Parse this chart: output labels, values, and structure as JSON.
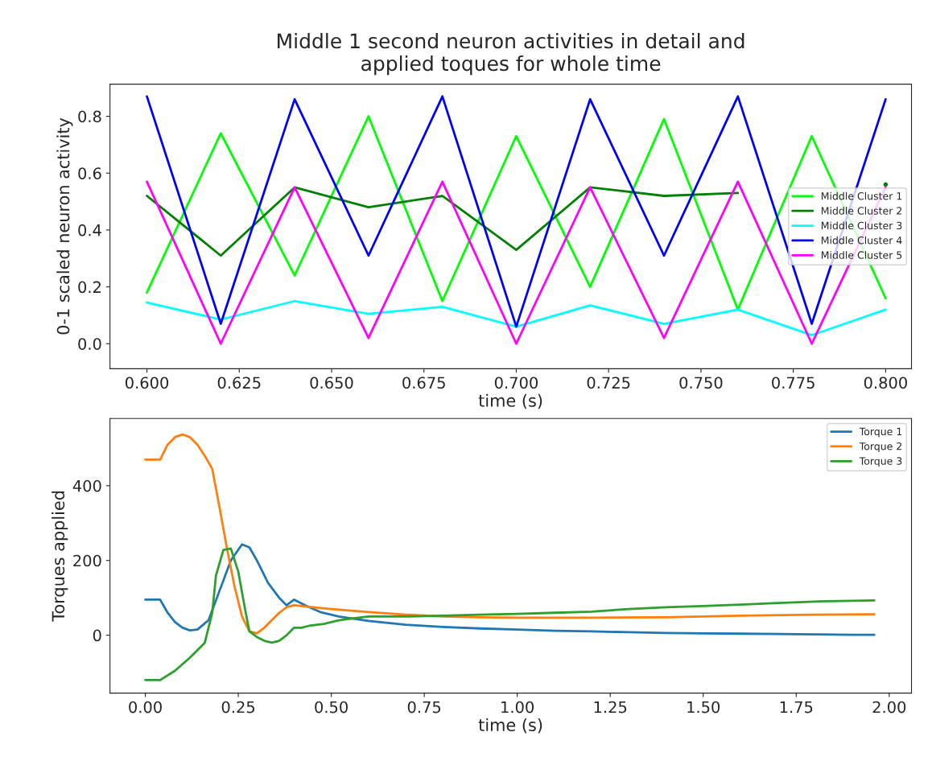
{
  "chart_data": [
    {
      "type": "line",
      "title": "Middle 1 second neuron activities in detail and\napplied toques for whole time",
      "xlabel": "time (s)",
      "ylabel": "0-1 scaled neuron activity",
      "x": [
        0.6,
        0.62,
        0.64,
        0.66,
        0.68,
        0.7,
        0.72,
        0.74,
        0.76,
        0.78,
        0.8
      ],
      "series": [
        {
          "name": "Middle Cluster 1",
          "color": "#00ff00",
          "values": [
            0.18,
            0.74,
            0.24,
            0.8,
            0.15,
            0.73,
            0.2,
            0.79,
            0.12,
            0.73,
            0.16
          ]
        },
        {
          "name": "Middle Cluster 2",
          "color": "#008000",
          "values": [
            0.52,
            0.31,
            0.55,
            0.48,
            0.52,
            0.33,
            0.55,
            0.52,
            0.53,
            null,
            0.56
          ]
        },
        {
          "name": "Middle Cluster 3",
          "color": "#00ffff",
          "values": [
            0.145,
            0.085,
            0.15,
            0.105,
            0.13,
            0.06,
            0.135,
            0.07,
            0.12,
            0.03,
            0.12
          ]
        },
        {
          "name": "Middle Cluster 4",
          "color": "#0000ff",
          "values": [
            0.87,
            0.07,
            0.86,
            0.31,
            0.87,
            0.06,
            0.86,
            0.31,
            0.87,
            0.07,
            0.86
          ]
        },
        {
          "name": "Middle Cluster 5",
          "color": "#ff00ff",
          "values": [
            0.57,
            0.0,
            0.55,
            0.02,
            0.57,
            0.0,
            0.55,
            0.02,
            0.57,
            0.0,
            0.55
          ]
        }
      ],
      "xlim": [
        0.59,
        0.807
      ],
      "ylim": [
        -0.088,
        0.913
      ],
      "xticks": [
        {
          "value": 0.6,
          "label": "0.600"
        },
        {
          "value": 0.625,
          "label": "0.625"
        },
        {
          "value": 0.65,
          "label": "0.650"
        },
        {
          "value": 0.675,
          "label": "0.675"
        },
        {
          "value": 0.7,
          "label": "0.700"
        },
        {
          "value": 0.725,
          "label": "0.725"
        },
        {
          "value": 0.75,
          "label": "0.750"
        },
        {
          "value": 0.775,
          "label": "0.775"
        },
        {
          "value": 0.8,
          "label": "0.800"
        }
      ],
      "yticks": [
        {
          "value": 0,
          "label": "0.0"
        },
        0.2,
        0.4,
        0.6,
        0.8
      ],
      "legend": "right",
      "grid": false
    },
    {
      "type": "line",
      "xlabel": "time (s)",
      "ylabel": "Torques applied",
      "series": [
        {
          "name": "Torque 1",
          "color": "#1f77b4",
          "x": [
            0,
            0.04,
            0.06,
            0.08,
            0.1,
            0.12,
            0.14,
            0.17,
            0.2,
            0.23,
            0.26,
            0.28,
            0.3,
            0.33,
            0.36,
            0.38,
            0.4,
            0.43,
            0.47,
            0.52,
            0.6,
            0.7,
            0.8,
            0.9,
            1.0,
            1.1,
            1.2,
            1.3,
            1.4,
            1.5,
            1.6,
            1.7,
            1.8,
            1.9,
            1.96
          ],
          "values": [
            95,
            95,
            60,
            35,
            20,
            13,
            15,
            40,
            120,
            200,
            243,
            235,
            200,
            140,
            100,
            80,
            95,
            80,
            62,
            50,
            38,
            28,
            22,
            18,
            15,
            12,
            10,
            8,
            6,
            5,
            4,
            3,
            2,
            1,
            1
          ]
        },
        {
          "name": "Torque 2",
          "color": "#ff7f0e",
          "x": [
            0,
            0.04,
            0.06,
            0.08,
            0.1,
            0.12,
            0.14,
            0.16,
            0.18,
            0.2,
            0.22,
            0.24,
            0.26,
            0.28,
            0.3,
            0.32,
            0.34,
            0.36,
            0.38,
            0.4,
            0.45,
            0.5,
            0.6,
            0.7,
            0.8,
            0.9,
            1.0,
            1.2,
            1.4,
            1.6,
            1.8,
            1.96
          ],
          "values": [
            470,
            470,
            510,
            530,
            537,
            530,
            510,
            480,
            445,
            340,
            230,
            130,
            50,
            10,
            5,
            20,
            40,
            60,
            75,
            80,
            75,
            70,
            62,
            55,
            50,
            48,
            47,
            47,
            48,
            52,
            55,
            56
          ]
        },
        {
          "name": "Torque 3",
          "color": "#2ca02c",
          "x": [
            0,
            0.04,
            0.08,
            0.12,
            0.16,
            0.18,
            0.19,
            0.21,
            0.23,
            0.25,
            0.27,
            0.28,
            0.3,
            0.32,
            0.34,
            0.36,
            0.38,
            0.4,
            0.42,
            0.44,
            0.48,
            0.52,
            0.56,
            0.6,
            0.7,
            0.8,
            0.9,
            1.0,
            1.1,
            1.2,
            1.3,
            1.4,
            1.5,
            1.6,
            1.7,
            1.8,
            1.9,
            1.96
          ],
          "values": [
            -120,
            -120,
            -95,
            -60,
            -20,
            60,
            160,
            228,
            232,
            170,
            60,
            10,
            -5,
            -15,
            -20,
            -15,
            0,
            20,
            20,
            25,
            30,
            40,
            45,
            50,
            50,
            52,
            55,
            57,
            60,
            63,
            70,
            75,
            78,
            82,
            86,
            90,
            92,
            93
          ]
        }
      ],
      "xlim": [
        -0.095,
        2.06
      ],
      "ylim": [
        -155,
        580
      ],
      "xticks": [
        {
          "value": 0,
          "label": "0.00"
        },
        {
          "value": 0.25,
          "label": "0.25"
        },
        {
          "value": 0.5,
          "label": "0.50"
        },
        {
          "value": 0.75,
          "label": "0.75"
        },
        {
          "value": 1.0,
          "label": "1.00"
        },
        {
          "value": 1.25,
          "label": "1.25"
        },
        {
          "value": 1.5,
          "label": "1.50"
        },
        {
          "value": 1.75,
          "label": "1.75"
        },
        {
          "value": 2.0,
          "label": "2.00"
        }
      ],
      "yticks": [
        0,
        200,
        400
      ],
      "legend": "top right",
      "grid": false
    }
  ]
}
